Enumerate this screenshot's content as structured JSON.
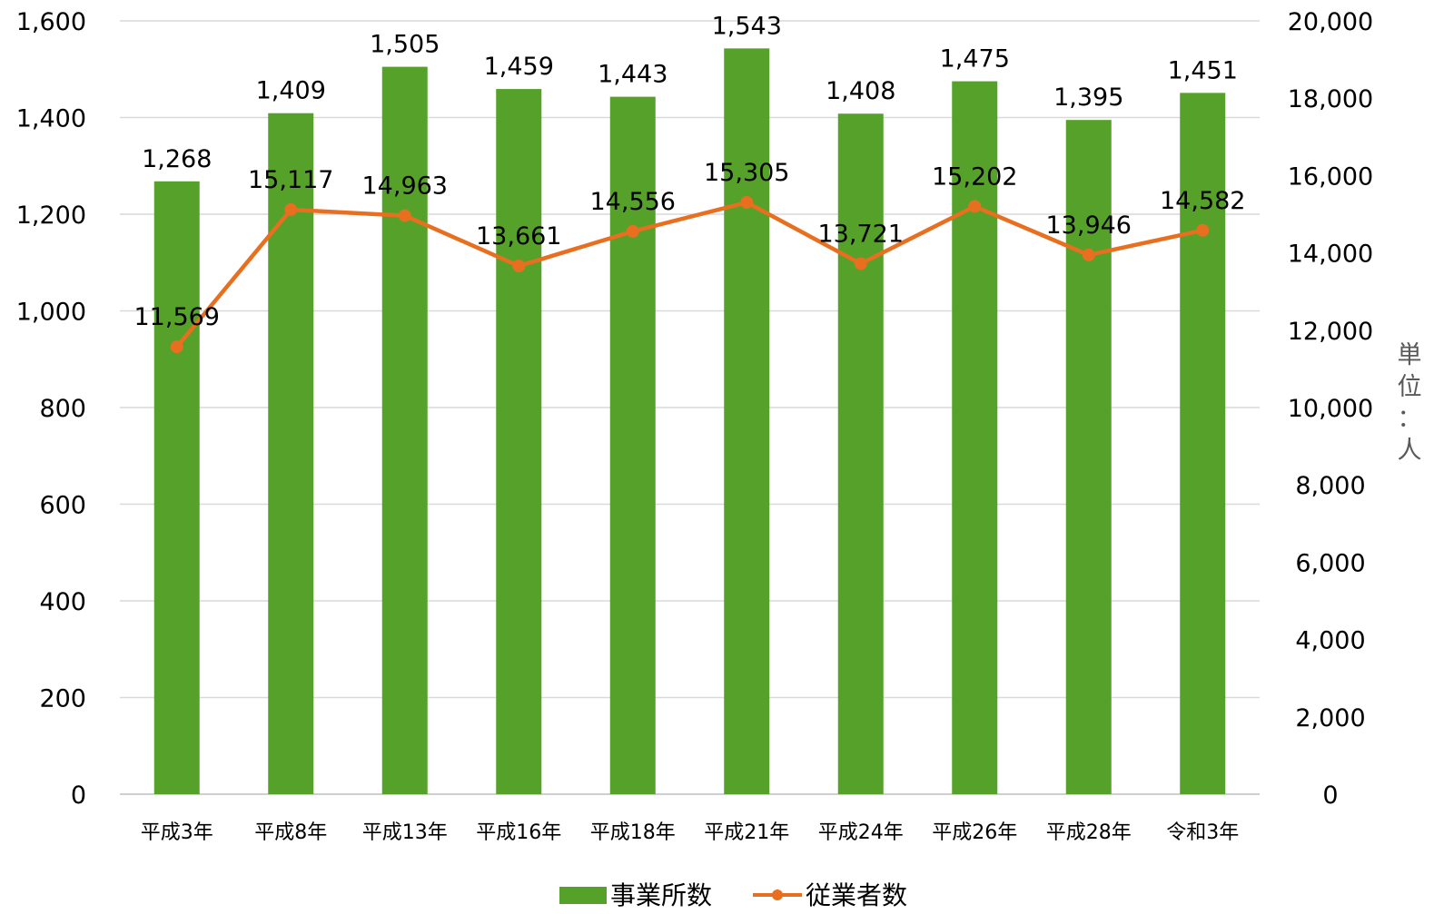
{
  "chart_data": {
    "type": "bar",
    "categories": [
      "平成3年",
      "平成8年",
      "平成13年",
      "平成16年",
      "平成18年",
      "平成21年",
      "平成24年",
      "平成26年",
      "平成28年",
      "令和3年"
    ],
    "series": [
      {
        "name": "事業所数",
        "type": "bar",
        "axis": "left",
        "color": "#56A12A",
        "values": [
          1268,
          1409,
          1505,
          1459,
          1443,
          1543,
          1408,
          1475,
          1395,
          1451
        ],
        "labels": [
          "1,268",
          "1,409",
          "1,505",
          "1,459",
          "1,443",
          "1,543",
          "1,408",
          "1,475",
          "1,395",
          "1,451"
        ]
      },
      {
        "name": "従業者数",
        "type": "line",
        "axis": "right",
        "color": "#E86F1F",
        "values": [
          11569,
          15117,
          14963,
          13661,
          14556,
          15305,
          13721,
          15202,
          13946,
          14582
        ],
        "labels": [
          "11,569",
          "15,117",
          "14,963",
          "13,661",
          "14,556",
          "15,305",
          "13,721",
          "15,202",
          "13,946",
          "14,582"
        ]
      }
    ],
    "left_axis": {
      "ylim": [
        0,
        1600
      ],
      "ticks": [
        0,
        200,
        400,
        600,
        800,
        1000,
        1200,
        1400,
        1600
      ],
      "tick_labels": [
        "0",
        "200",
        "400",
        "600",
        "800",
        "1,000",
        "1,200",
        "1,400",
        "1,600"
      ]
    },
    "right_axis": {
      "ylim": [
        0,
        20000
      ],
      "ticks": [
        0,
        2000,
        4000,
        6000,
        8000,
        10000,
        12000,
        14000,
        16000,
        18000,
        20000
      ],
      "tick_labels": [
        "0",
        "2,000",
        "4,000",
        "6,000",
        "8,000",
        "10,000",
        "12,000",
        "14,000",
        "16,000",
        "18,000",
        "20,000"
      ],
      "unit_label": [
        "単",
        "位",
        "：",
        "人"
      ]
    },
    "grid": true,
    "legend_position": "bottom"
  }
}
